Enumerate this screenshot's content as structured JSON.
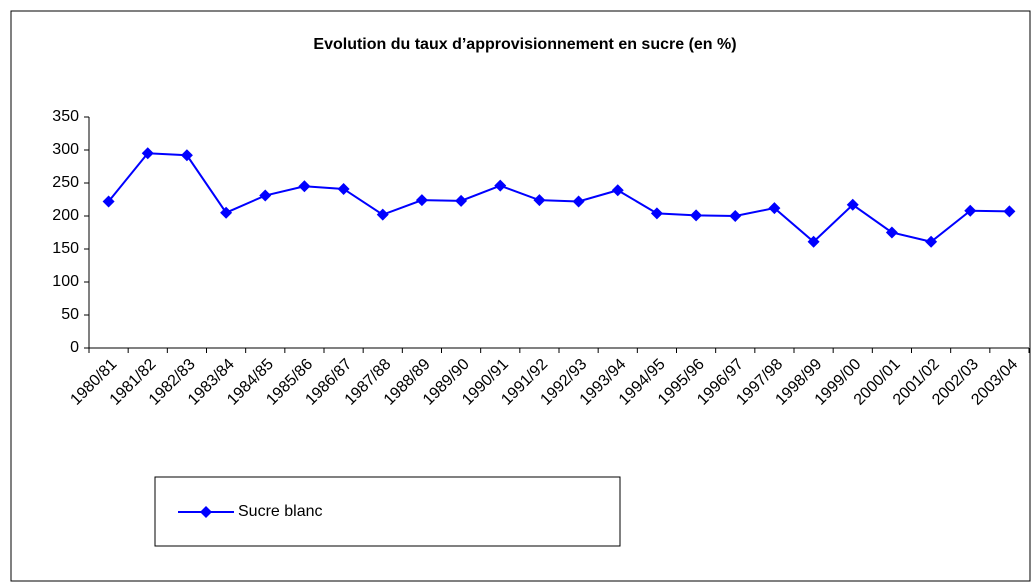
{
  "chart_data": {
    "type": "line",
    "title": "Evolution du taux d’approvisionnement en sucre (en %)",
    "categories": [
      "1980/81",
      "1981/82",
      "1982/83",
      "1983/84",
      "1984/85",
      "1985/86",
      "1986/87",
      "1987/88",
      "1988/89",
      "1989/90",
      "1990/91",
      "1991/92",
      "1992/93",
      "1993/94",
      "1994/95",
      "1995/96",
      "1996/97",
      "1997/98",
      "1998/99",
      "1999/00",
      "2000/01",
      "2001/02",
      "2002/03",
      "2003/04"
    ],
    "series": [
      {
        "name": "Sucre blanc",
        "color": "#0000ff",
        "values": [
          222,
          295,
          292,
          205,
          231,
          245,
          241,
          202,
          224,
          223,
          246,
          224,
          222,
          239,
          204,
          201,
          200,
          212,
          161,
          217,
          175,
          161,
          208,
          207
        ]
      }
    ],
    "ylim": [
      0,
      350
    ],
    "yticks": [
      0,
      50,
      100,
      150,
      200,
      250,
      300,
      350
    ],
    "grid": false,
    "legend": "bottom-left"
  }
}
